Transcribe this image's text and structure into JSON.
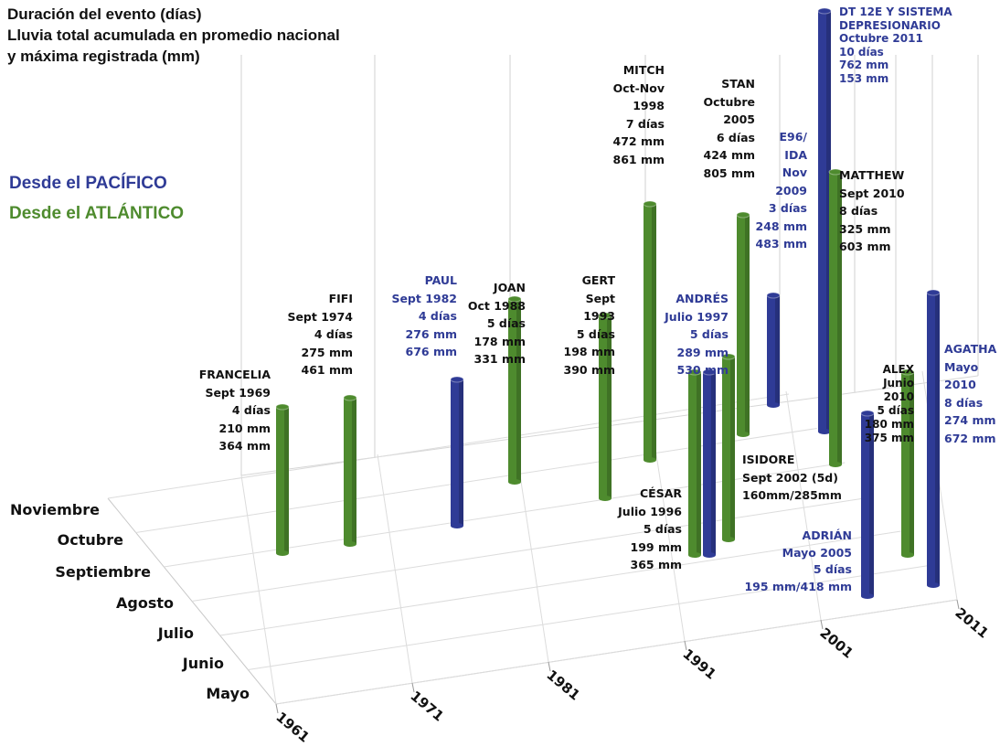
{
  "title": [
    "Duración del evento (días)",
    "Lluvia total acumulada en promedio nacional",
    "y máxima registrada (mm)"
  ],
  "legend": [
    {
      "label": "Desde el PACÍFICO",
      "color": "#2f3b96"
    },
    {
      "label": "Desde el ATLÁNTICO",
      "color": "#4e8b2e"
    }
  ],
  "colors": {
    "pacific": "#2f3b96",
    "atlantic": "#4e8b2e",
    "text": "#111111"
  },
  "chart_data": {
    "type": "bar",
    "subtype": "3d-cylinder-timeline",
    "x_axis": {
      "ticks": [
        "1961",
        "1971",
        "1981",
        "1991",
        "2001",
        "2011"
      ]
    },
    "y_axis": {
      "ticks": [
        "Mayo",
        "Junio",
        "Julio",
        "Agosto",
        "Septiembre",
        "Octubre",
        "Noviembre"
      ]
    },
    "value_label": "Duración del evento (días)",
    "events": [
      {
        "name": "FRANCELIA",
        "ocean": "atlantic",
        "lines": [
          "FRANCELIA",
          "Sept 1969",
          "4 días",
          "210 mm",
          "364 mm"
        ],
        "year": 1969,
        "month": "Septiembre",
        "days": 4,
        "avg_mm": 210,
        "max_mm": 364
      },
      {
        "name": "FIFI",
        "ocean": "atlantic",
        "lines": [
          "FIFI",
          "Sept 1974",
          "4 días",
          "275 mm",
          "461 mm"
        ],
        "year": 1974,
        "month": "Septiembre",
        "days": 4,
        "avg_mm": 275,
        "max_mm": 461
      },
      {
        "name": "PAUL",
        "ocean": "pacific",
        "lines": [
          "PAUL",
          "Sept 1982",
          "4 días",
          "276 mm",
          "676 mm"
        ],
        "year": 1982,
        "month": "Septiembre",
        "days": 4,
        "avg_mm": 276,
        "max_mm": 676
      },
      {
        "name": "JOAN",
        "ocean": "atlantic",
        "lines": [
          "JOAN",
          "Oct 1988",
          "5 días",
          "178 mm",
          "331 mm"
        ],
        "year": 1988,
        "month": "Octubre",
        "days": 5,
        "avg_mm": 178,
        "max_mm": 331
      },
      {
        "name": "GERT",
        "ocean": "atlantic",
        "lines": [
          "GERT",
          "Sept",
          "1993",
          "5 días",
          "198 mm",
          "390 mm"
        ],
        "year": 1993,
        "month": "Septiembre",
        "days": 5,
        "avg_mm": 198,
        "max_mm": 390
      },
      {
        "name": "MITCH",
        "ocean": "atlantic",
        "lines": [
          "MITCH",
          "Oct-Nov",
          "1998",
          "7 días",
          "472 mm",
          "861 mm"
        ],
        "year": 1998,
        "month": "Octubre-Noviembre",
        "days": 7,
        "avg_mm": 472,
        "max_mm": 861
      },
      {
        "name": "STAN",
        "ocean": "atlantic",
        "lines": [
          "STAN",
          "Octubre",
          "2005",
          "6 días",
          "424 mm",
          "805 mm"
        ],
        "year": 2005,
        "month": "Octubre",
        "days": 6,
        "avg_mm": 424,
        "max_mm": 805
      },
      {
        "name": "E96/IDA",
        "ocean": "pacific",
        "lines": [
          "E96/",
          "IDA",
          "Nov",
          "2009",
          "3 días",
          "248 mm",
          "483 mm"
        ],
        "year": 2009,
        "month": "Noviembre",
        "days": 3,
        "avg_mm": 248,
        "max_mm": 483
      },
      {
        "name": "DT 12E Y SISTEMA DEPRESIONARIO",
        "ocean": "pacific",
        "lines": [
          "DT 12E Y SISTEMA",
          "DEPRESIONARIO",
          "Octubre 2011",
          "10 días",
          "762 mm",
          "153 mm"
        ],
        "year": 2011,
        "month": "Octubre",
        "days": 10,
        "avg_mm": 762,
        "max_mm": 153
      },
      {
        "name": "MATTHEW",
        "ocean": "atlantic",
        "lines": [
          "MATTHEW",
          "Sept 2010",
          "8 días",
          "325 mm",
          "603 mm"
        ],
        "year": 2010,
        "month": "Septiembre",
        "days": 8,
        "avg_mm": 325,
        "max_mm": 603
      },
      {
        "name": "ANDRÉS",
        "ocean": "pacific",
        "lines": [
          "ANDRÉS",
          "Julio 1997",
          "5 días",
          "289 mm",
          "530 mm"
        ],
        "year": 1997,
        "month": "Julio",
        "days": 5,
        "avg_mm": 289,
        "max_mm": 530
      },
      {
        "name": "CÉSAR",
        "ocean": "atlantic",
        "lines": [
          "CÉSAR",
          "Julio 1996",
          "5 días",
          "199 mm",
          "365 mm"
        ],
        "year": 1996,
        "month": "Julio",
        "days": 5,
        "avg_mm": 199,
        "max_mm": 365
      },
      {
        "name": "ISIDORE",
        "ocean": "atlantic",
        "lines": [
          "ISIDORE",
          "Sept 2002 (5d)",
          "160mm/285mm"
        ],
        "year": 2002,
        "month": "Septiembre",
        "days": 5,
        "avg_mm": 160,
        "max_mm": 285
      },
      {
        "name": "ALEX",
        "ocean": "atlantic",
        "lines": [
          "ALEX",
          "Junio",
          "2010",
          "5 días",
          "180 mm",
          "375 mm"
        ],
        "year": 2010,
        "month": "Junio",
        "days": 5,
        "avg_mm": 180,
        "max_mm": 375
      },
      {
        "name": "ADRIÁN",
        "ocean": "pacific",
        "lines": [
          "ADRIÁN",
          "Mayo 2005",
          "5 días",
          "195 mm/418 mm"
        ],
        "year": 2005,
        "month": "Mayo",
        "days": 5,
        "avg_mm": 195,
        "max_mm": 418
      },
      {
        "name": "AGATHA",
        "ocean": "pacific",
        "lines": [
          "AGATHA",
          "Mayo",
          "2010",
          "8 días",
          "274 mm",
          "672 mm"
        ],
        "year": 2010,
        "month": "Mayo",
        "days": 8,
        "avg_mm": 274,
        "max_mm": 672
      }
    ]
  }
}
